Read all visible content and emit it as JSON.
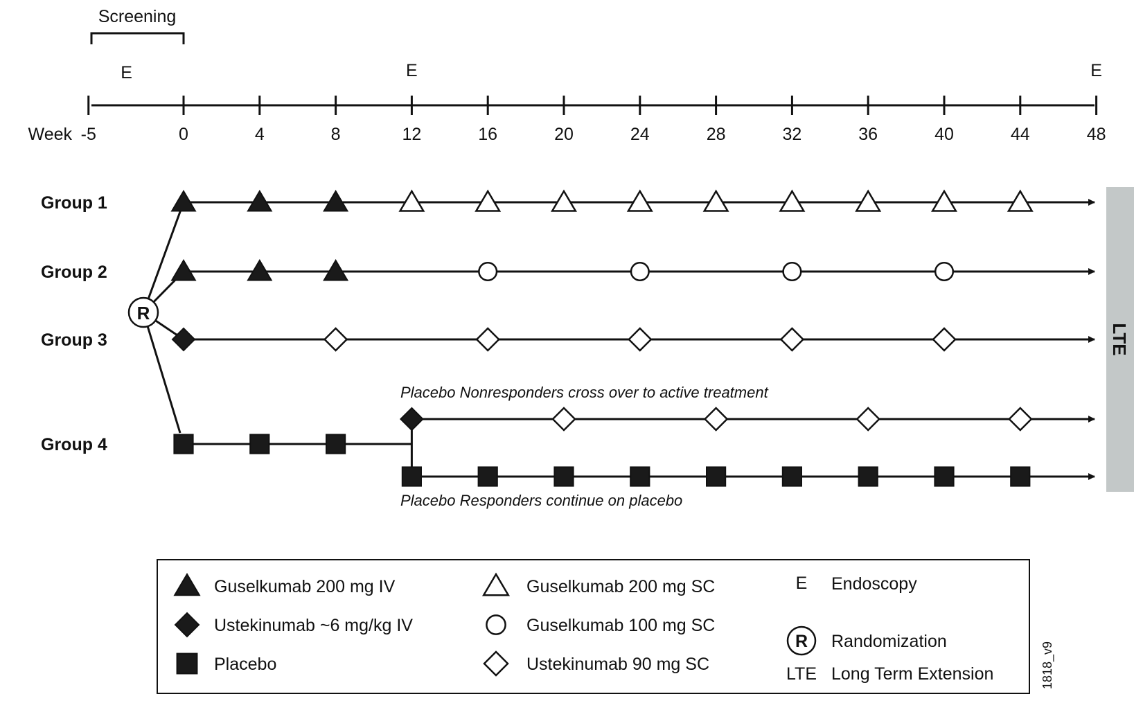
{
  "screening_label": "Screening",
  "endoscopy_marker": "E",
  "timeline": {
    "week_label": "Week",
    "weeks": [
      "-5",
      "0",
      "4",
      "8",
      "12",
      "16",
      "20",
      "24",
      "28",
      "32",
      "36",
      "40",
      "44",
      "48"
    ],
    "endoscopy_weeks": [
      -3,
      12,
      48
    ]
  },
  "randomization_symbol": "R",
  "groups": [
    {
      "label": "Group 1",
      "doses": [
        {
          "week": 0,
          "shape": "triangle-filled"
        },
        {
          "week": 4,
          "shape": "triangle-filled"
        },
        {
          "week": 8,
          "shape": "triangle-filled"
        },
        {
          "week": 12,
          "shape": "triangle-open"
        },
        {
          "week": 16,
          "shape": "triangle-open"
        },
        {
          "week": 20,
          "shape": "triangle-open"
        },
        {
          "week": 24,
          "shape": "triangle-open"
        },
        {
          "week": 28,
          "shape": "triangle-open"
        },
        {
          "week": 32,
          "shape": "triangle-open"
        },
        {
          "week": 36,
          "shape": "triangle-open"
        },
        {
          "week": 40,
          "shape": "triangle-open"
        },
        {
          "week": 44,
          "shape": "triangle-open"
        }
      ]
    },
    {
      "label": "Group 2",
      "doses": [
        {
          "week": 0,
          "shape": "triangle-filled"
        },
        {
          "week": 4,
          "shape": "triangle-filled"
        },
        {
          "week": 8,
          "shape": "triangle-filled"
        },
        {
          "week": 16,
          "shape": "circle-open"
        },
        {
          "week": 24,
          "shape": "circle-open"
        },
        {
          "week": 32,
          "shape": "circle-open"
        },
        {
          "week": 40,
          "shape": "circle-open"
        }
      ]
    },
    {
      "label": "Group 3",
      "doses": [
        {
          "week": 0,
          "shape": "diamond-filled"
        },
        {
          "week": 8,
          "shape": "diamond-open"
        },
        {
          "week": 16,
          "shape": "diamond-open"
        },
        {
          "week": 24,
          "shape": "diamond-open"
        },
        {
          "week": 32,
          "shape": "diamond-open"
        },
        {
          "week": 40,
          "shape": "diamond-open"
        }
      ]
    },
    {
      "label": "Group 4",
      "doses": [
        {
          "week": 0,
          "shape": "square-filled"
        },
        {
          "week": 4,
          "shape": "square-filled"
        },
        {
          "week": 8,
          "shape": "square-filled"
        }
      ]
    }
  ],
  "nonresponders": {
    "note": "Placebo Nonresponders cross over to active treatment",
    "doses": [
      {
        "week": 12,
        "shape": "diamond-filled"
      },
      {
        "week": 20,
        "shape": "diamond-open"
      },
      {
        "week": 28,
        "shape": "diamond-open"
      },
      {
        "week": 36,
        "shape": "diamond-open"
      },
      {
        "week": 44,
        "shape": "diamond-open"
      }
    ]
  },
  "responders": {
    "note": "Placebo Responders continue on placebo",
    "doses": [
      {
        "week": 12,
        "shape": "square-filled"
      },
      {
        "week": 16,
        "shape": "square-filled"
      },
      {
        "week": 20,
        "shape": "square-filled"
      },
      {
        "week": 24,
        "shape": "square-filled"
      },
      {
        "week": 28,
        "shape": "square-filled"
      },
      {
        "week": 32,
        "shape": "square-filled"
      },
      {
        "week": 36,
        "shape": "square-filled"
      },
      {
        "week": 40,
        "shape": "square-filled"
      },
      {
        "week": 44,
        "shape": "square-filled"
      }
    ]
  },
  "lte_label": "LTE",
  "lte_color": "#c3c8c8",
  "legend": {
    "items": [
      {
        "shape": "triangle-filled",
        "label": "Guselkumab 200 mg IV"
      },
      {
        "shape": "diamond-filled",
        "label": "Ustekinumab ~6 mg/kg IV"
      },
      {
        "shape": "square-filled",
        "label": "Placebo"
      },
      {
        "shape": "triangle-open",
        "label": "Guselkumab 200 mg SC"
      },
      {
        "shape": "circle-open",
        "label": "Guselkumab 100 mg SC"
      },
      {
        "shape": "diamond-open",
        "label": "Ustekinumab 90 mg SC"
      },
      {
        "shape": "text-e",
        "symbol": "E",
        "label": "Endoscopy"
      },
      {
        "shape": "circle-r",
        "symbol": "R",
        "label": "Randomization"
      },
      {
        "shape": "text-lte",
        "symbol": "LTE",
        "label": "Long Term Extension"
      }
    ]
  },
  "figure_id": "1818_v9"
}
